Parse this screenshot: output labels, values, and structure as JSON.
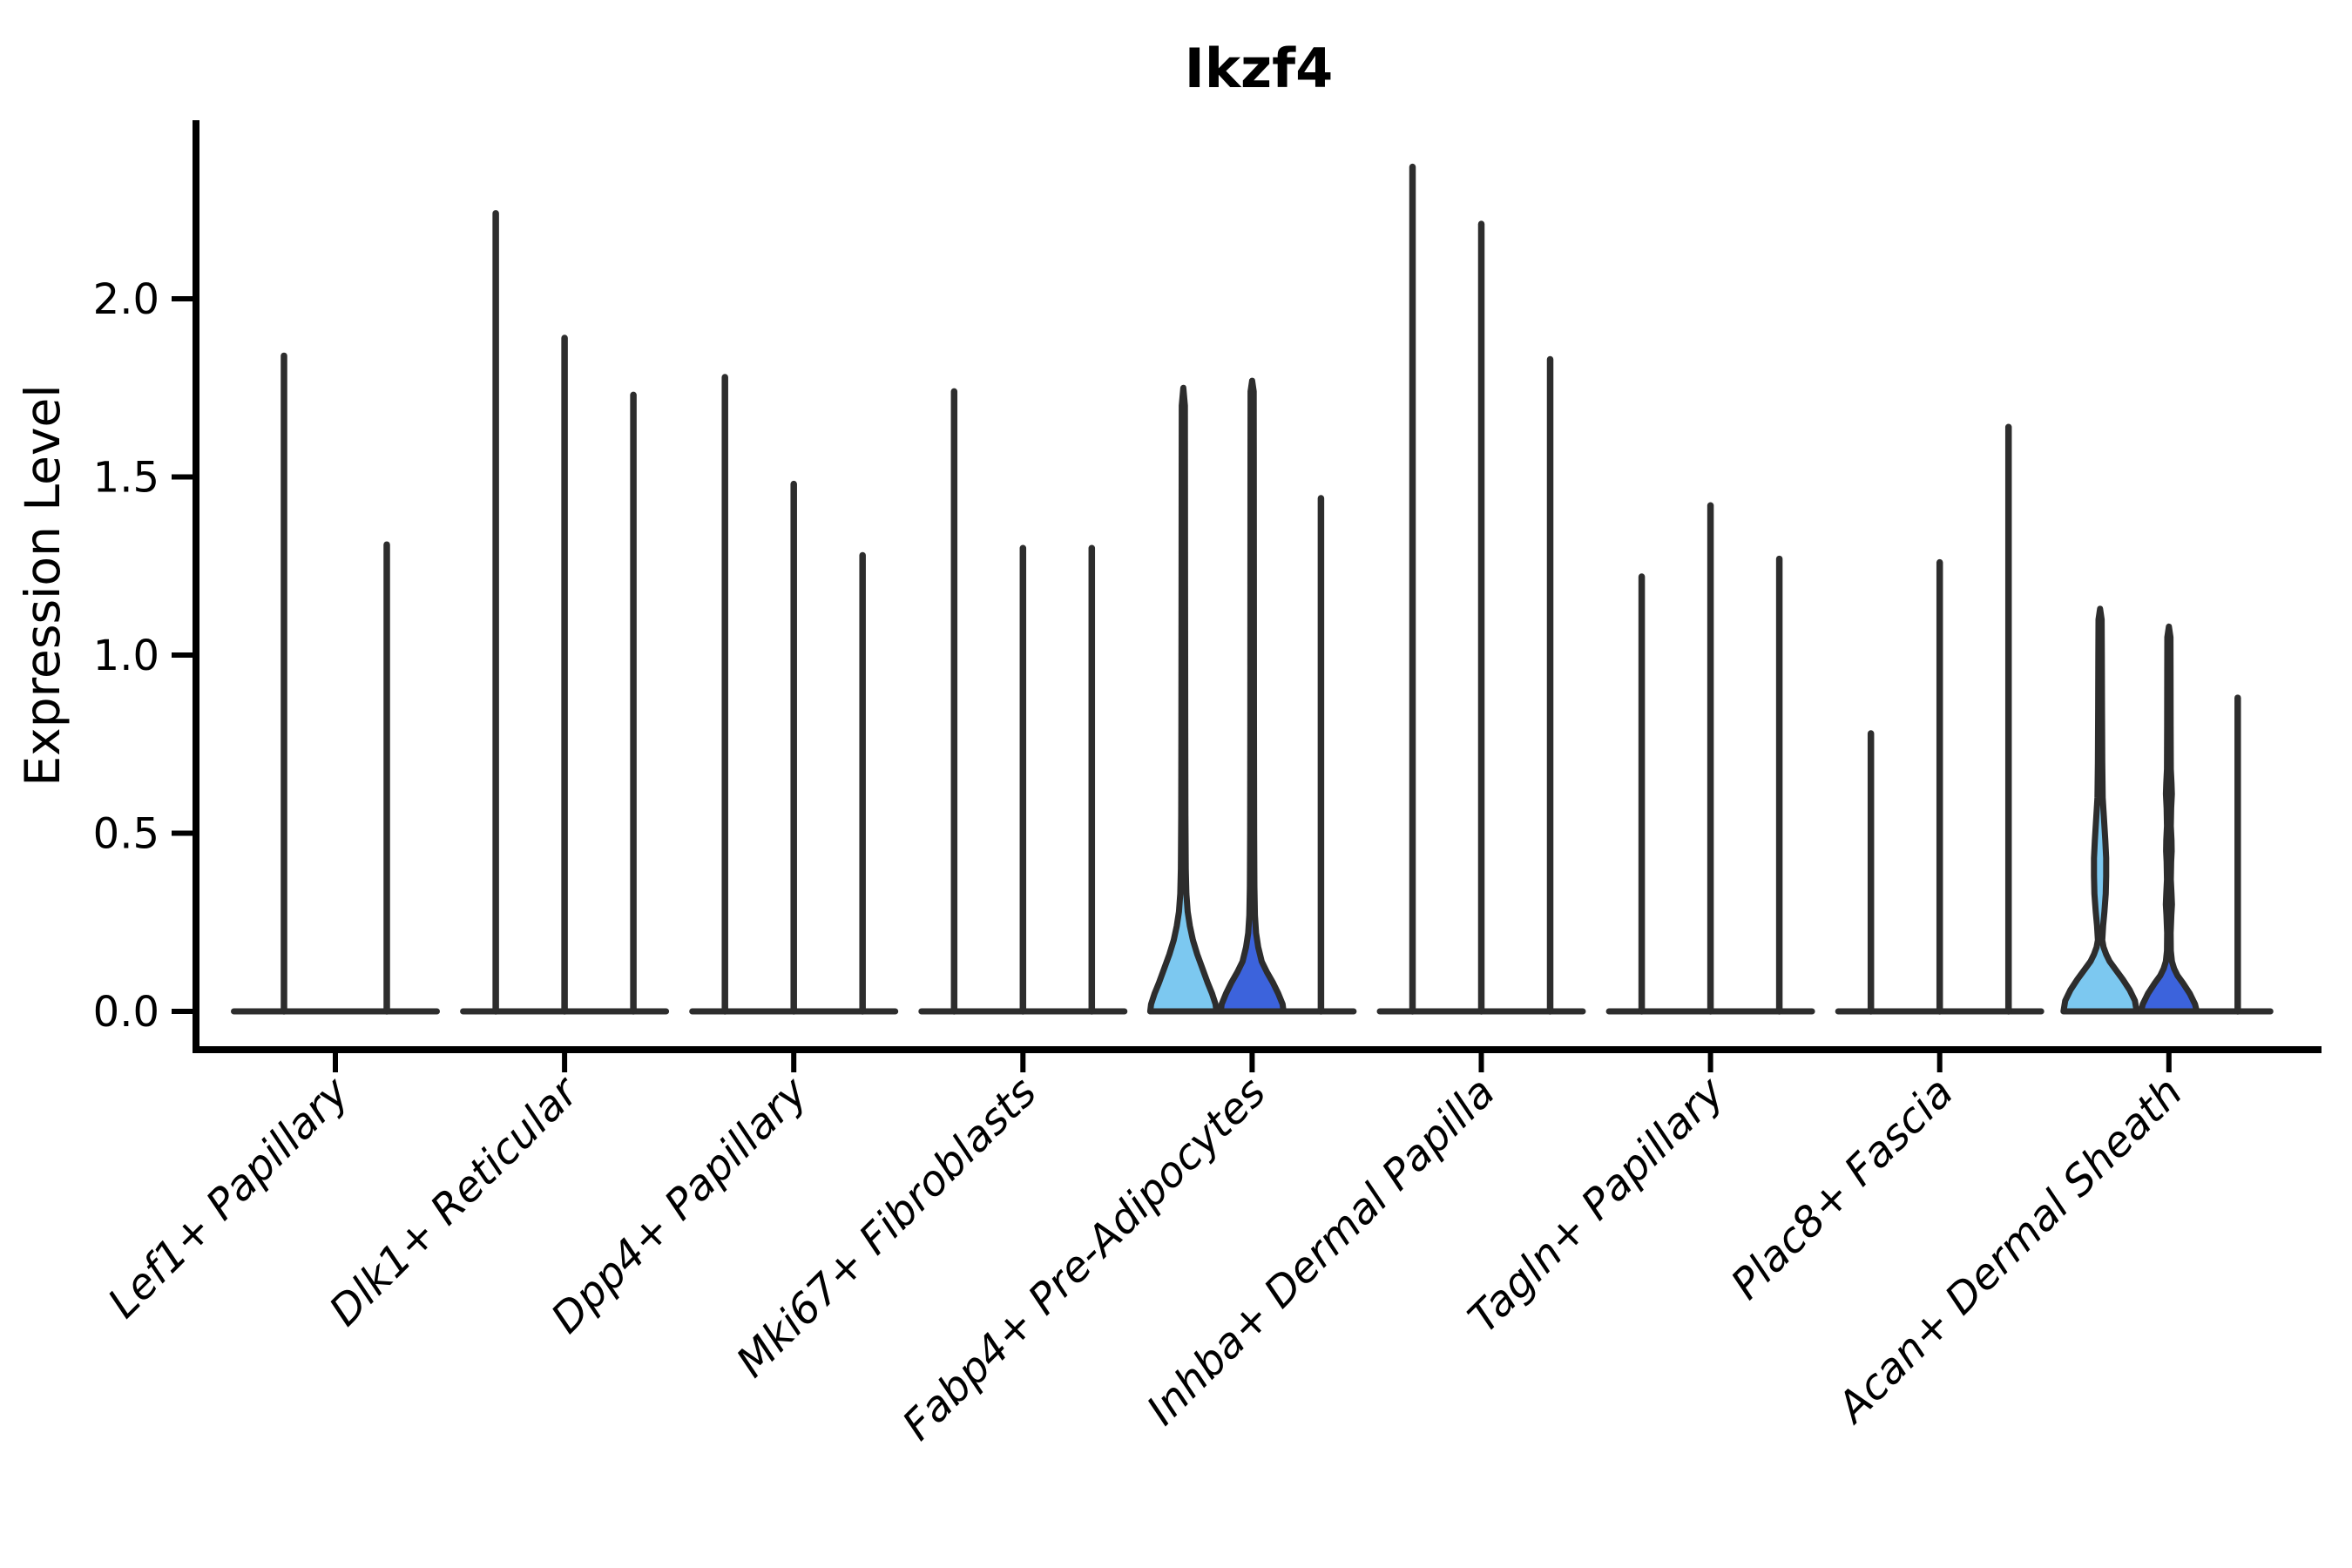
{
  "chart_data": {
    "type": "violin",
    "title": "Ikzf4",
    "ylabel": "Expression Level",
    "xlabel": "",
    "yticks": [
      0.0,
      0.5,
      1.0,
      1.5,
      2.0
    ],
    "ylim": [
      -0.11,
      2.5
    ],
    "grid": false,
    "legend": null,
    "description": "Stacked/split violin plot of Ikzf4 expression per fibroblast cluster; 2-3 violins per cluster, most density at 0 (needle-like violins). Only Fabp4+ Pre-Adipocytes and Acan+ Dermal Sheath show filled colored violins.",
    "colors": {
      "light_blue": "#7CC8F0",
      "royal_blue": "#3C63DC",
      "outline": "#2D2D2D",
      "axis": "#000000",
      "background": "#FFFFFF"
    },
    "groups": [
      {
        "category": "Lef1+ Papillary",
        "violins": [
          {
            "max": 1.84,
            "fill": null
          },
          {
            "max": 1.31,
            "fill": null
          }
        ]
      },
      {
        "category": "Dlk1+ Reticular",
        "violins": [
          {
            "max": 2.24,
            "fill": null
          },
          {
            "max": 1.89,
            "fill": null
          },
          {
            "max": 1.73,
            "fill": null
          }
        ]
      },
      {
        "category": "Dpp4+ Papillary",
        "violins": [
          {
            "max": 1.78,
            "fill": null
          },
          {
            "max": 1.48,
            "fill": null
          },
          {
            "max": 1.28,
            "fill": null
          }
        ]
      },
      {
        "category": "Mki67+ Fibroblasts",
        "violins": [
          {
            "max": 1.74,
            "fill": null
          },
          {
            "max": 1.3,
            "fill": null
          },
          {
            "max": 1.3,
            "fill": null
          }
        ]
      },
      {
        "category": "Fabp4+ Pre-Adipocytes",
        "violins": [
          {
            "max": 1.75,
            "fill": "#7CC8F0",
            "profile": [
              [
                0,
                38
              ],
              [
                0.02,
                37
              ],
              [
                0.05,
                33
              ],
              [
                0.08,
                28
              ],
              [
                0.12,
                22
              ],
              [
                0.16,
                16
              ],
              [
                0.2,
                11
              ],
              [
                0.24,
                7.5
              ],
              [
                0.28,
                5
              ],
              [
                0.33,
                3.5
              ],
              [
                0.4,
                2.8
              ],
              [
                0.55,
                2.4
              ],
              [
                0.8,
                2.2
              ],
              [
                1.2,
                2.0
              ],
              [
                1.5,
                1.9
              ],
              [
                1.7,
                1.8
              ],
              [
                1.75,
                0
              ]
            ]
          },
          {
            "max": 1.77,
            "fill": "#3C63DC",
            "profile": [
              [
                0,
                36
              ],
              [
                0.02,
                35
              ],
              [
                0.05,
                30
              ],
              [
                0.08,
                24
              ],
              [
                0.11,
                17
              ],
              [
                0.14,
                11
              ],
              [
                0.18,
                7
              ],
              [
                0.22,
                4.5
              ],
              [
                0.27,
                3.2
              ],
              [
                0.35,
                2.6
              ],
              [
                0.5,
                2.3
              ],
              [
                0.8,
                2.1
              ],
              [
                1.2,
                2.0
              ],
              [
                1.55,
                1.9
              ],
              [
                1.74,
                1.8
              ],
              [
                1.77,
                0
              ]
            ]
          },
          {
            "max": 1.44,
            "fill": null
          }
        ]
      },
      {
        "category": "Inhba+ Dermal Papilla",
        "violins": [
          {
            "max": 2.37,
            "fill": null
          },
          {
            "max": 2.21,
            "fill": null
          },
          {
            "max": 1.83,
            "fill": null
          }
        ]
      },
      {
        "category": "Tagln+ Papillary",
        "violins": [
          {
            "max": 1.22,
            "fill": null
          },
          {
            "max": 1.42,
            "fill": null
          },
          {
            "max": 1.27,
            "fill": null
          }
        ]
      },
      {
        "category": "Plac8+ Fascia",
        "violins": [
          {
            "max": 0.78,
            "fill": null
          },
          {
            "max": 1.26,
            "fill": null
          },
          {
            "max": 1.64,
            "fill": null
          }
        ]
      },
      {
        "category": "Acan+ Dermal Sheath",
        "violins": [
          {
            "max": 1.13,
            "fill": "#7CC8F0",
            "profile": [
              [
                0,
                42
              ],
              [
                0.03,
                40
              ],
              [
                0.06,
                34
              ],
              [
                0.09,
                26
              ],
              [
                0.12,
                17
              ],
              [
                0.14,
                11
              ],
              [
                0.16,
                7
              ],
              [
                0.18,
                4
              ],
              [
                0.2,
                2.5
              ],
              [
                0.24,
                3.5
              ],
              [
                0.28,
                5
              ],
              [
                0.33,
                6.5
              ],
              [
                0.38,
                7
              ],
              [
                0.43,
                7
              ],
              [
                0.48,
                6
              ],
              [
                0.54,
                4.5
              ],
              [
                0.6,
                3
              ],
              [
                0.7,
                2.5
              ],
              [
                0.85,
                2.2
              ],
              [
                1.0,
                2.0
              ],
              [
                1.1,
                1.8
              ],
              [
                1.13,
                0
              ]
            ]
          },
          {
            "max": 1.08,
            "fill": "#3C63DC",
            "profile": [
              [
                0,
                32
              ],
              [
                0.02,
                30
              ],
              [
                0.05,
                24
              ],
              [
                0.08,
                16
              ],
              [
                0.1,
                10
              ],
              [
                0.12,
                6
              ],
              [
                0.14,
                3.5
              ],
              [
                0.17,
                2.2
              ],
              [
                0.22,
                2.0
              ],
              [
                0.27,
                2.8
              ],
              [
                0.3,
                3.5
              ],
              [
                0.33,
                3.0
              ],
              [
                0.37,
                2.2
              ],
              [
                0.42,
                2.6
              ],
              [
                0.45,
                3.2
              ],
              [
                0.48,
                3.0
              ],
              [
                0.52,
                2.2
              ],
              [
                0.57,
                2.6
              ],
              [
                0.61,
                3.4
              ],
              [
                0.64,
                3.0
              ],
              [
                0.68,
                2.2
              ],
              [
                0.8,
                2.0
              ],
              [
                0.95,
                1.9
              ],
              [
                1.05,
                1.8
              ],
              [
                1.08,
                0
              ]
            ]
          },
          {
            "max": 0.88,
            "fill": null
          }
        ]
      }
    ]
  }
}
